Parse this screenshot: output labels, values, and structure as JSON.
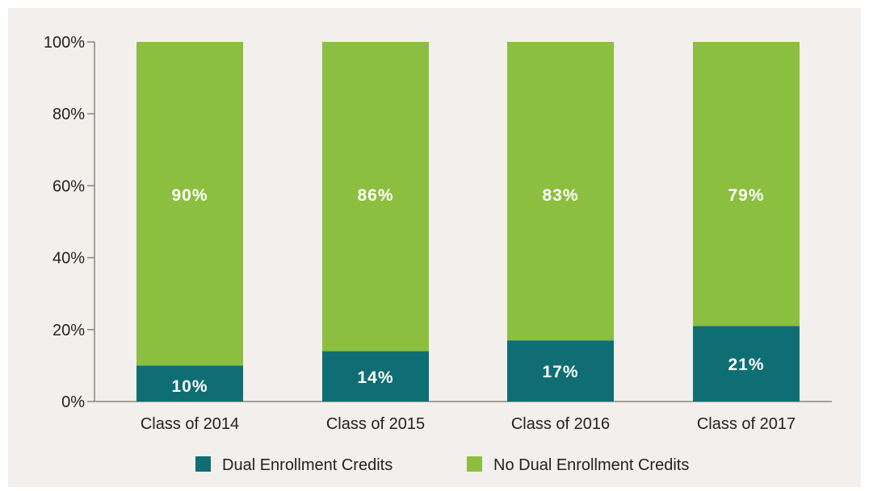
{
  "chart_data": {
    "type": "bar",
    "stacked": true,
    "categories": [
      "Class of 2014",
      "Class of 2015",
      "Class of 2016",
      "Class of 2017"
    ],
    "series": [
      {
        "name": "Dual Enrollment Credits",
        "color": "#0e6e74",
        "values": [
          10,
          14,
          17,
          21
        ],
        "labels": [
          "10%",
          "14%",
          "17%",
          "21%"
        ]
      },
      {
        "name": "No Dual Enrollment Credits",
        "color": "#8cbf3f",
        "values": [
          90,
          86,
          83,
          79
        ],
        "labels": [
          "90%",
          "86%",
          "83%",
          "79%"
        ]
      }
    ],
    "ylim": [
      0,
      100
    ],
    "yticks": [
      "0%",
      "20%",
      "40%",
      "60%",
      "80%",
      "100%"
    ],
    "ytick_values": [
      0,
      20,
      40,
      60,
      80,
      100
    ],
    "grid": false,
    "legend_position": "bottom",
    "background_color": "#f2efec",
    "axis_color": "#8a857e",
    "data_label_color": "#ffffff"
  }
}
